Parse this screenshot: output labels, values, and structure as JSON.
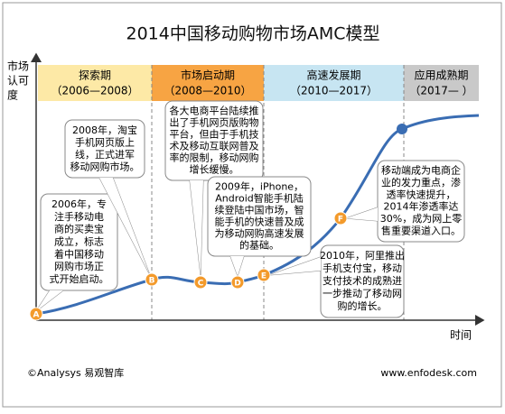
{
  "title": "2014中国移动购物市场AMC模型",
  "y_axis_label": [
    "市场",
    "认可",
    "度"
  ],
  "x_axis_label": "时间",
  "phases": [
    {
      "name": "探索期",
      "years": "（2006—2008）"
    },
    {
      "name": "市场启动期",
      "years": "（2008—2010）"
    },
    {
      "name": "高速发展期",
      "years": "（2010—2017）"
    },
    {
      "name": "应用成熟期",
      "years": "（2017— ）"
    }
  ],
  "points": [
    "A",
    "B",
    "C",
    "D",
    "E",
    "F"
  ],
  "callouts": [
    [
      "2006年，专",
      "注手移动电",
      "商的买卖宝",
      "成立，标志",
      "着中国移动",
      "网购市场正",
      "式开始启动。"
    ],
    [
      "2008年，淘宝",
      "手机网页版上",
      "线，正式进军",
      "移动网购市场。"
    ],
    [
      "各大电商平台陆续推",
      "出了手机网页版购物",
      "平台，但由于手机技",
      "术及移动互联网普及",
      "率的限制，移动网购",
      "增长缓慢。"
    ],
    [
      "2009年，iPhone，",
      "Android智能手机陆",
      "续登陆中国市场，智",
      "能手机的快速普及成",
      "为移动网购高速发展",
      "的基础。"
    ],
    [
      "2010年，阿里推出",
      "手机支付宝，移动",
      "支付技术的成熟进",
      "一步推动了移动网",
      "购的增长。"
    ],
    [
      "移动端成为电商企",
      "业的发力重点，渗",
      "透率快速提升，",
      "2014年渗透率达",
      "30%，成为网上零",
      "售重要渠道入口。"
    ]
  ],
  "footer": {
    "left": "©Analysys 易观智库",
    "right": "www.enfodesk.com"
  }
}
